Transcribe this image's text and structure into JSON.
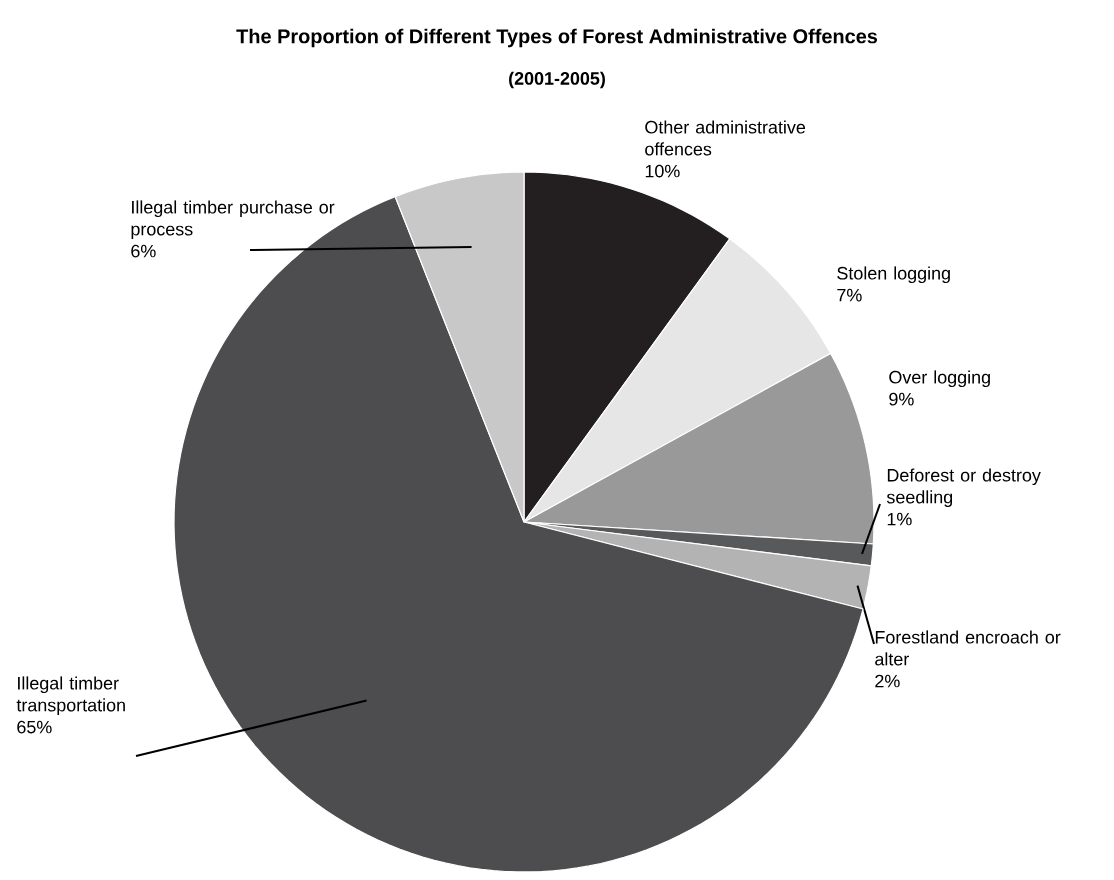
{
  "chart_data": {
    "type": "pie",
    "title": "The Proportion of Different Types of Forest Administrative Offences",
    "subtitle": "(2001-2005)",
    "categories": [
      "Other administrative offences",
      "Stolen logging",
      "Over logging",
      "Deforest or destroy seedling",
      "Forestland encroach or alter",
      "Illegal timber transportation",
      "Illegal timber purchase or process"
    ],
    "values": [
      10,
      7,
      9,
      1,
      2,
      65,
      6
    ],
    "value_labels": [
      "10%",
      "7%",
      "9%",
      "1%",
      "2%",
      "65%",
      "6%"
    ],
    "colors": [
      "#231f20",
      "#e6e6e6",
      "#999999",
      "#58595b",
      "#b3b3b3",
      "#4d4d4f",
      "#c8c8c8"
    ]
  }
}
